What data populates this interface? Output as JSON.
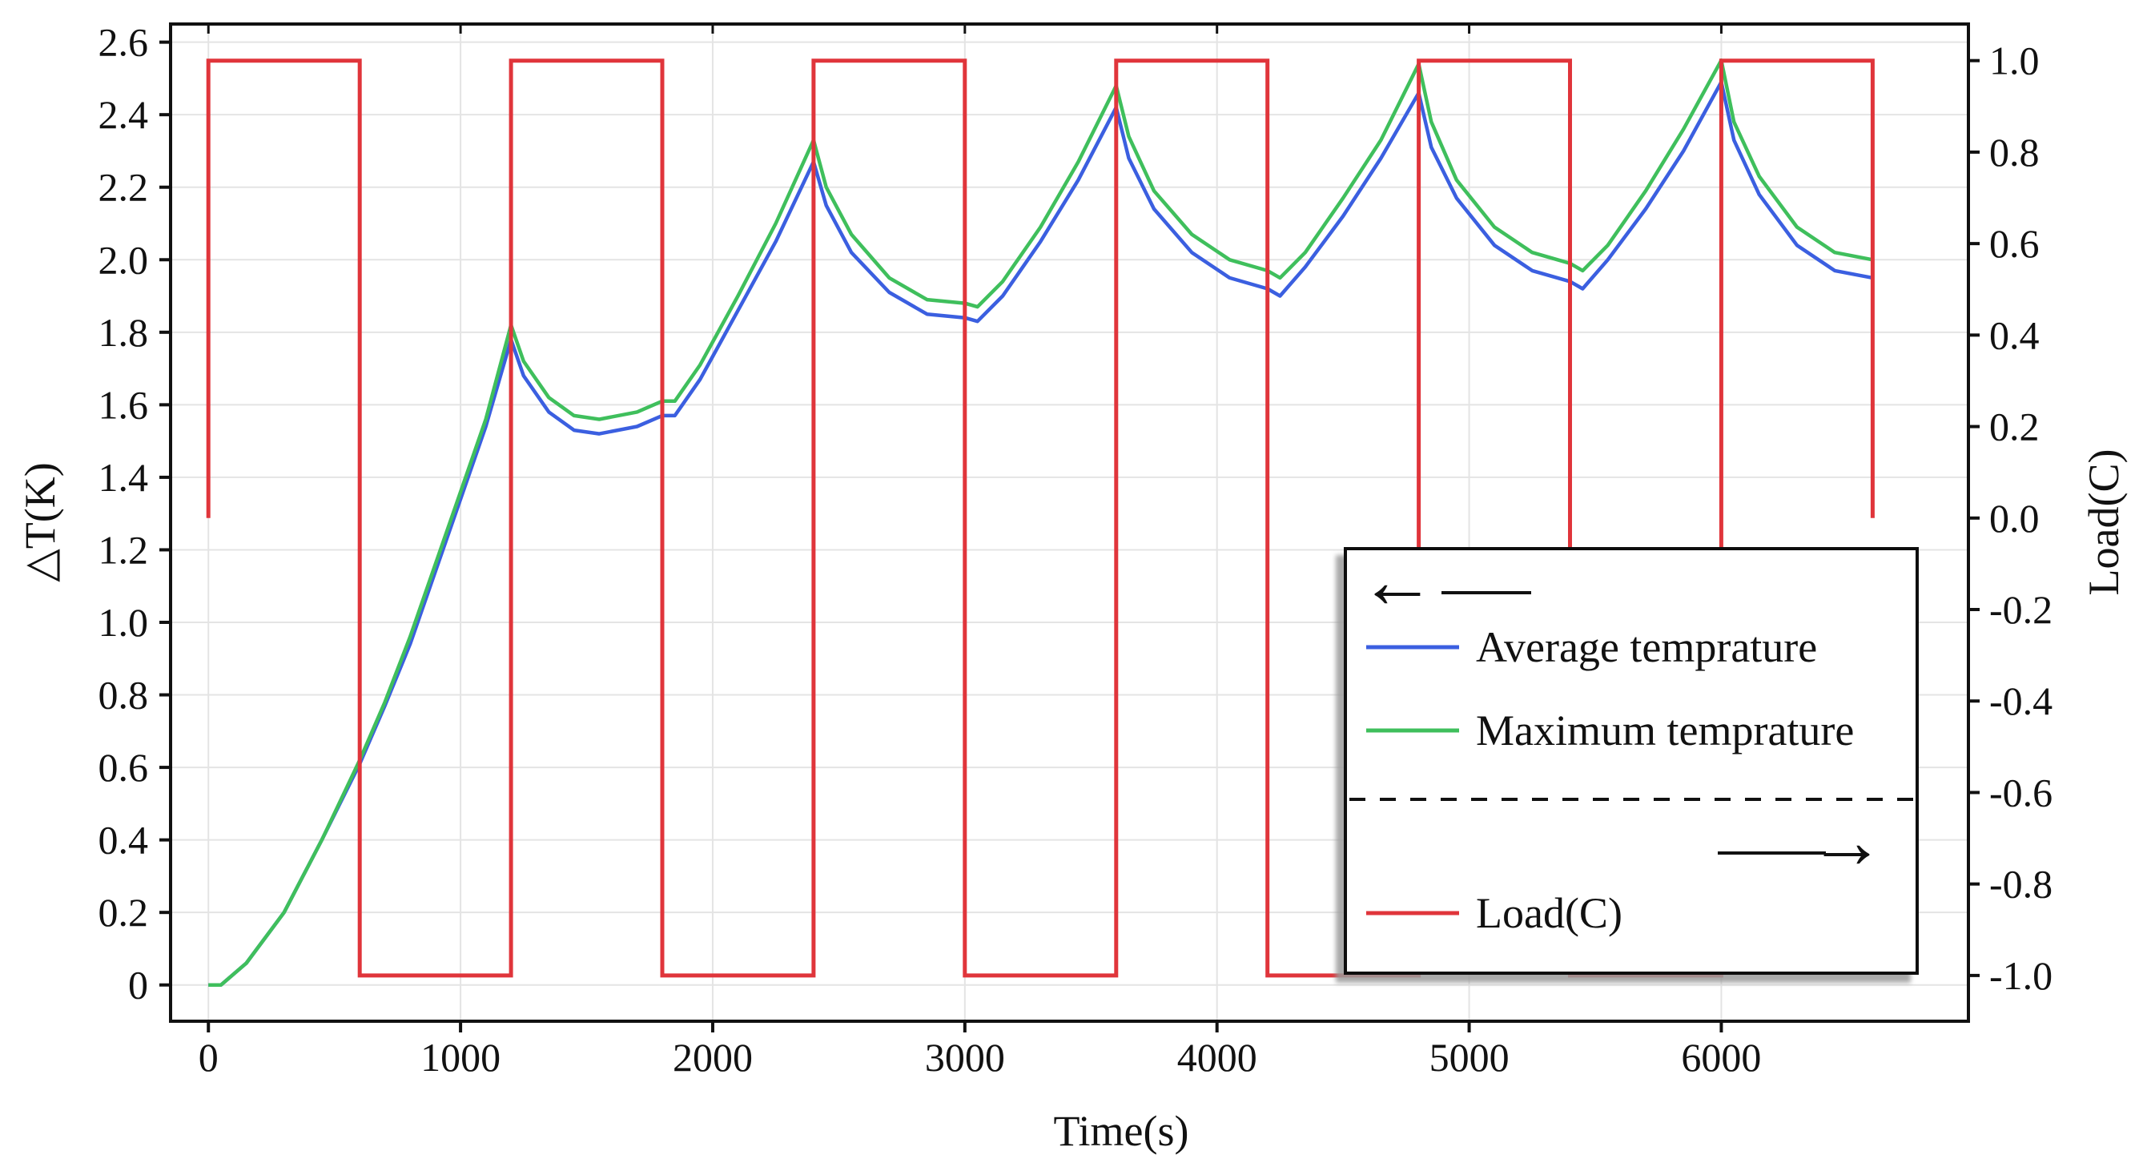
{
  "chart_data": {
    "type": "line",
    "title": "",
    "xlabel": "Time(s)",
    "ylabel_left": "△T(K)",
    "ylabel_right": "Load(C)",
    "xlim": [
      -150,
      6980
    ],
    "ylim_left": [
      -0.1,
      2.65
    ],
    "ylim_right": [
      -1.1,
      1.08
    ],
    "x_ticks": [
      0,
      1000,
      2000,
      3000,
      4000,
      5000,
      6000
    ],
    "x_tick_labels": [
      "0",
      "1000",
      "2000",
      "3000",
      "4000",
      "5000",
      "6000"
    ],
    "y_left_ticks": [
      0,
      0.2,
      0.4,
      0.6,
      0.8,
      1.0,
      1.2,
      1.4,
      1.6,
      1.8,
      2.0,
      2.2,
      2.4,
      2.6
    ],
    "y_left_tick_labels": [
      "0",
      "0.2",
      "0.4",
      "0.6",
      "0.8",
      "1.0",
      "1.2",
      "1.4",
      "1.6",
      "1.8",
      "2.0",
      "2.2",
      "2.4",
      "2.6"
    ],
    "y_right_ticks": [
      -1.0,
      -0.8,
      -0.6,
      -0.4,
      -0.2,
      0.0,
      0.2,
      0.4,
      0.6,
      0.8,
      1.0
    ],
    "y_right_tick_labels": [
      "-1.0",
      "-0.8",
      "-0.6",
      "-0.4",
      "-0.2",
      "0.0",
      "0.2",
      "0.4",
      "0.6",
      "0.8",
      "1.0"
    ],
    "grid": true,
    "legend_position": "bottom-right",
    "legend": {
      "left_axis_arrow": "←",
      "right_axis_arrow": "→",
      "entries": [
        "Average temprature",
        "Maximum temprature",
        "Load(C)"
      ]
    },
    "series": [
      {
        "name": "Average temprature",
        "axis": "left",
        "color": "#3b5fe0",
        "x": [
          0,
          50,
          150,
          300,
          450,
          600,
          700,
          800,
          950,
          1100,
          1200,
          1250,
          1350,
          1450,
          1550,
          1700,
          1800,
          1850,
          1950,
          2100,
          2250,
          2400,
          2450,
          2550,
          2700,
          2850,
          3000,
          3050,
          3150,
          3300,
          3450,
          3600,
          3650,
          3750,
          3900,
          4050,
          4200,
          4250,
          4350,
          4500,
          4650,
          4800,
          4850,
          4950,
          5100,
          5250,
          5400,
          5450,
          5550,
          5700,
          5850,
          6000,
          6050,
          6150,
          6300,
          6450,
          6600
        ],
        "values": [
          0.0,
          0.0,
          0.06,
          0.2,
          0.4,
          0.61,
          0.77,
          0.94,
          1.24,
          1.54,
          1.78,
          1.68,
          1.58,
          1.53,
          1.52,
          1.54,
          1.57,
          1.57,
          1.67,
          1.86,
          2.05,
          2.27,
          2.15,
          2.02,
          1.91,
          1.85,
          1.84,
          1.83,
          1.9,
          2.05,
          2.22,
          2.42,
          2.28,
          2.14,
          2.02,
          1.95,
          1.92,
          1.9,
          1.98,
          2.12,
          2.28,
          2.46,
          2.31,
          2.17,
          2.04,
          1.97,
          1.94,
          1.92,
          2.0,
          2.14,
          2.3,
          2.49,
          2.33,
          2.18,
          2.04,
          1.97,
          1.95
        ]
      },
      {
        "name": "Maximum temprature",
        "axis": "left",
        "color": "#3fbf5c",
        "x": [
          0,
          50,
          150,
          300,
          450,
          600,
          700,
          800,
          950,
          1100,
          1200,
          1250,
          1350,
          1450,
          1550,
          1700,
          1800,
          1850,
          1950,
          2100,
          2250,
          2400,
          2450,
          2550,
          2700,
          2850,
          3000,
          3050,
          3150,
          3300,
          3450,
          3600,
          3650,
          3750,
          3900,
          4050,
          4200,
          4250,
          4350,
          4500,
          4650,
          4800,
          4850,
          4950,
          5100,
          5250,
          5400,
          5450,
          5550,
          5700,
          5850,
          6000,
          6050,
          6150,
          6300,
          6450,
          6600
        ],
        "values": [
          0.0,
          0.0,
          0.06,
          0.2,
          0.4,
          0.62,
          0.78,
          0.96,
          1.26,
          1.56,
          1.82,
          1.72,
          1.62,
          1.57,
          1.56,
          1.58,
          1.61,
          1.61,
          1.71,
          1.9,
          2.1,
          2.33,
          2.2,
          2.07,
          1.95,
          1.89,
          1.88,
          1.87,
          1.94,
          2.09,
          2.27,
          2.48,
          2.34,
          2.19,
          2.07,
          2.0,
          1.97,
          1.95,
          2.02,
          2.17,
          2.33,
          2.54,
          2.38,
          2.22,
          2.09,
          2.02,
          1.99,
          1.97,
          2.04,
          2.19,
          2.36,
          2.55,
          2.38,
          2.23,
          2.09,
          2.02,
          2.0
        ]
      },
      {
        "name": "Load(C)",
        "axis": "right",
        "color": "#e0353b",
        "x": [
          0,
          0,
          600,
          600,
          1200,
          1200,
          1800,
          1800,
          2400,
          2400,
          3000,
          3000,
          3600,
          3600,
          4200,
          4200,
          4800,
          4800,
          5400,
          5400,
          6000,
          6000,
          6600,
          6600
        ],
        "values": [
          0.0,
          1.0,
          1.0,
          -1.0,
          -1.0,
          1.0,
          1.0,
          -1.0,
          -1.0,
          1.0,
          1.0,
          -1.0,
          -1.0,
          1.0,
          1.0,
          -1.0,
          -1.0,
          1.0,
          1.0,
          -1.0,
          -1.0,
          1.0,
          1.0,
          0.0
        ]
      }
    ]
  }
}
